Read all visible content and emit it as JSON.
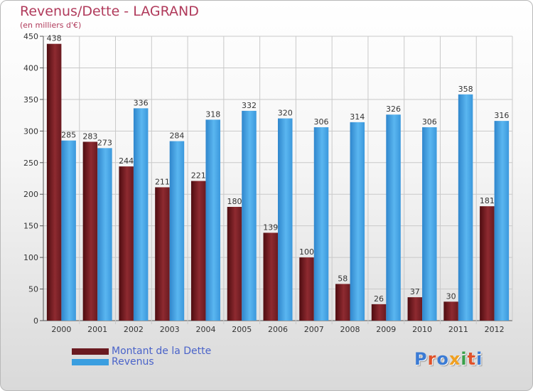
{
  "title": "Revenus/Dette - LAGRAND",
  "subtitle": "(en milliers d'€)",
  "legend": [
    "Montant de la Dette",
    "Revenus"
  ],
  "logo": {
    "text": "Proxiti",
    "colors": [
      "#3b7bd4",
      "#e0522a",
      "#3b7bd4",
      "#f0a020",
      "#3aa04a",
      "#e0522a",
      "#3b7bd4"
    ]
  },
  "colors": {
    "dette": "#7a1f25",
    "revenus": "#3a9ee0",
    "title": "#b03a5b"
  },
  "chart_data": {
    "type": "bar",
    "title": "Revenus/Dette - LAGRAND",
    "ylabel": "(en milliers d'€)",
    "xlabel": "",
    "categories": [
      "2000",
      "2001",
      "2002",
      "2003",
      "2004",
      "2005",
      "2006",
      "2007",
      "2008",
      "2009",
      "2010",
      "2011",
      "2012"
    ],
    "series": [
      {
        "name": "Montant de la Dette",
        "values": [
          438,
          283,
          244,
          211,
          221,
          180,
          139,
          100,
          58,
          26,
          37,
          30,
          181
        ]
      },
      {
        "name": "Revenus",
        "values": [
          285,
          273,
          336,
          284,
          318,
          332,
          320,
          306,
          314,
          326,
          306,
          358,
          316
        ]
      }
    ],
    "ylim": [
      0,
      450
    ],
    "yticks": [
      0,
      50,
      100,
      150,
      200,
      250,
      300,
      350,
      400,
      450
    ],
    "grid": true,
    "legend_position": "bottom-left"
  }
}
